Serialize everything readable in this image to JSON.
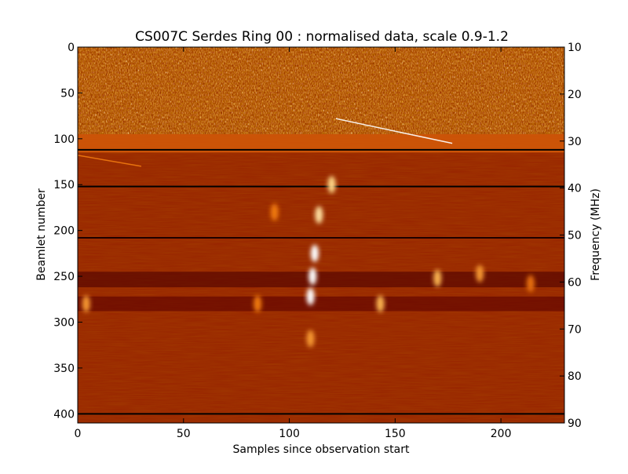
{
  "chart_data": {
    "type": "heatmap",
    "title": "CS007C Serdes Ring 00 : normalised data, scale 0.9-1.2",
    "xlabel": "Samples since observation start",
    "ylabel": "Beamlet number",
    "y2label": "Frequency (MHz)",
    "xlim": [
      0,
      230
    ],
    "ylim": [
      410,
      0
    ],
    "y2lim": [
      10,
      90
    ],
    "x_ticks": [
      0,
      50,
      100,
      150,
      200
    ],
    "y_ticks": [
      0,
      50,
      100,
      150,
      200,
      250,
      300,
      350,
      400
    ],
    "y2_ticks": [
      10,
      20,
      30,
      40,
      50,
      60,
      70,
      80,
      90
    ],
    "color_scale": [
      0.9,
      1.2
    ],
    "colormap": [
      "#000000",
      "#5c0000",
      "#b83a00",
      "#f07a10",
      "#ffd070",
      "#ffffff"
    ],
    "background_value": 1.0,
    "regions": [
      {
        "label": "saturated noise band",
        "y_range": [
          0,
          95
        ],
        "value": "mixed 0.9-1.2"
      },
      {
        "label": "transition band",
        "y_range": [
          95,
          115
        ],
        "value": 1.05
      }
    ],
    "horizontal_lines": [
      {
        "beamlet": 112,
        "value": 0.9
      },
      {
        "beamlet": 152,
        "value": 0.9
      },
      {
        "beamlet": 208,
        "value": 0.92
      },
      {
        "beamlet": 400,
        "value": 0.9
      }
    ],
    "dark_bands": [
      {
        "beamlet_range": [
          245,
          262
        ],
        "value": 0.95
      },
      {
        "beamlet_range": [
          272,
          288
        ],
        "value": 0.96
      }
    ],
    "bright_blobs": [
      {
        "x": 120,
        "beamlet": 150,
        "value": 1.15
      },
      {
        "x": 114,
        "beamlet": 183,
        "value": 1.16
      },
      {
        "x": 112,
        "beamlet": 225,
        "value": 1.2
      },
      {
        "x": 111,
        "beamlet": 250,
        "value": 1.2
      },
      {
        "x": 110,
        "beamlet": 272,
        "value": 1.2
      },
      {
        "x": 110,
        "beamlet": 318,
        "value": 1.1
      },
      {
        "x": 93,
        "beamlet": 180,
        "value": 1.08
      },
      {
        "x": 143,
        "beamlet": 280,
        "value": 1.12
      },
      {
        "x": 170,
        "beamlet": 252,
        "value": 1.12
      },
      {
        "x": 190,
        "beamlet": 247,
        "value": 1.1
      },
      {
        "x": 85,
        "beamlet": 280,
        "value": 1.08
      },
      {
        "x": 4,
        "beamlet": 280,
        "value": 1.1
      },
      {
        "x": 214,
        "beamlet": 258,
        "value": 1.07
      }
    ],
    "streaks": [
      {
        "from": [
          122,
          78
        ],
        "to": [
          177,
          105
        ],
        "value": 1.2
      },
      {
        "from": [
          0,
          118
        ],
        "to": [
          30,
          130
        ],
        "value": 1.08
      }
    ]
  }
}
